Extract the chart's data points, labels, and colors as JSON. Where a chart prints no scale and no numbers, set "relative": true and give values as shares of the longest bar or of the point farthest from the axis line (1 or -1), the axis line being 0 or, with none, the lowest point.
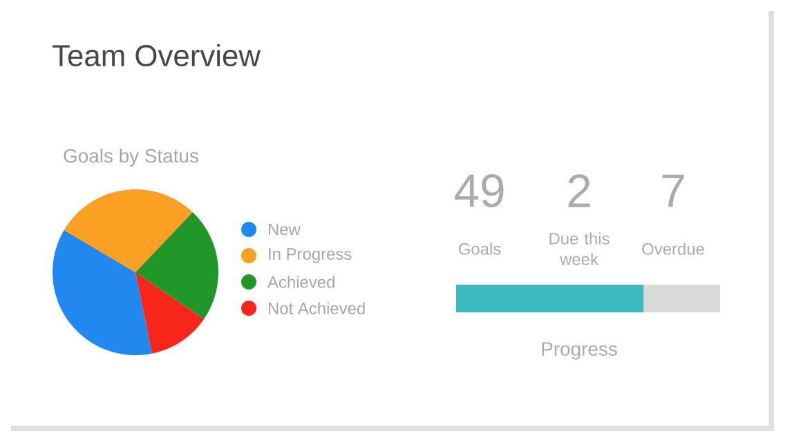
{
  "chart_data": [
    {
      "type": "pie",
      "title": "Team Overview",
      "subtitle": "Goals by Status",
      "categories": [
        "New",
        "In Progress",
        "Achieved",
        "Not Achieved"
      ],
      "values": [
        36.7,
        28.6,
        22.4,
        12.3
      ],
      "colors": [
        "#2188f0",
        "#fca024",
        "#21972a",
        "#f7251a"
      ],
      "legend": "right"
    },
    {
      "type": "other",
      "categories": [
        "Goals",
        "Due this week",
        "Overdue"
      ],
      "values": [
        49,
        2,
        7
      ],
      "data_labels": true
    },
    {
      "type": "bar",
      "orientation": "horizontal",
      "stacked": true,
      "relative": true,
      "xlabel": "Progress",
      "categories": [
        null
      ],
      "series": [
        {
          "color": "#3dbbc1",
          "values": [
            0.71
          ]
        },
        {
          "color": "#d9d9d9",
          "values": [
            0.29
          ]
        }
      ]
    }
  ]
}
